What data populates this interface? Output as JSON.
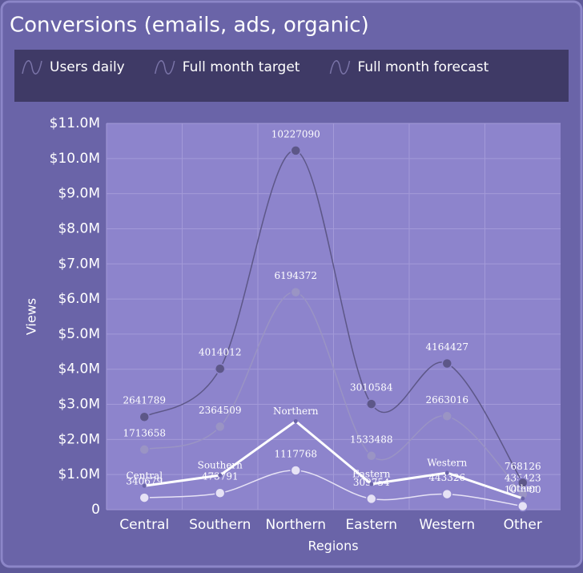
{
  "chart_data": {
    "type": "line",
    "title": "Conversions (emails, ads, organic)",
    "x_label": "Regions",
    "y_label": "Views",
    "categories": [
      "Central",
      "Southern",
      "Northern",
      "Eastern",
      "Western",
      "Other"
    ],
    "series": [
      {
        "name": "Users daily",
        "color": "#e6e2f5",
        "values": [
          340679,
          473791,
          1117768,
          309754,
          443326,
          100000
        ]
      },
      {
        "name": "Full month target",
        "color": "#9a94c4",
        "values": [
          1713658,
          2364509,
          6194372,
          1533488,
          2663016,
          435423
        ]
      },
      {
        "name": "Full month forecast",
        "color": "#5d5788",
        "values": [
          2641789,
          4014012,
          10227090,
          3010584,
          4164427,
          768126
        ]
      },
      {
        "color": "#ffffff",
        "values": [
          680000,
          980000,
          2520000,
          730000,
          1050000,
          320000
        ]
      }
    ],
    "ylim": [
      0,
      11000000
    ],
    "yticks": [
      0,
      {
        "value": 1000000,
        "label": "$1.0M"
      },
      {
        "value": 2000000,
        "label": "$2.0M"
      },
      {
        "value": 3000000,
        "label": "$3.0M"
      },
      {
        "value": 4000000,
        "label": "$4.0M"
      },
      {
        "value": 5000000,
        "label": "$5.0M"
      },
      {
        "value": 6000000,
        "label": "$6.0M"
      },
      {
        "value": 7000000,
        "label": "$7.0M"
      },
      {
        "value": 8000000,
        "label": "$8.0M"
      },
      {
        "value": 9000000,
        "label": "$9.0M"
      },
      {
        "value": 10000000,
        "label": "$10.0M"
      },
      {
        "value": 11000000,
        "label": "$11.0M"
      }
    ],
    "grid": true,
    "legend": "top"
  }
}
